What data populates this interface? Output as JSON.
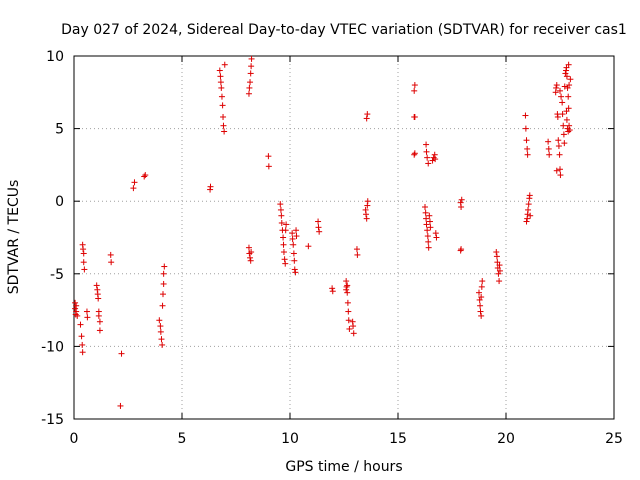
{
  "chart_data": {
    "type": "scatter",
    "title": "Day 027 of 2024, Sidereal Day-to-day VTEC variation (SDTVAR) for receiver cas1",
    "xlabel": "GPS time / hours",
    "ylabel": "SDTVAR / TECUs",
    "xlim": [
      0,
      25
    ],
    "ylim": [
      -15,
      10
    ],
    "xticks": [
      0,
      5,
      10,
      15,
      20,
      25
    ],
    "yticks": [
      -15,
      -10,
      -5,
      0,
      5,
      10
    ],
    "xtick_labels": [
      "0",
      "5",
      "10",
      "15",
      "20",
      "25"
    ],
    "ytick_labels": [
      "-15",
      "-10",
      "-5",
      "0",
      "5",
      "10"
    ],
    "grid": true,
    "marker": "+",
    "color": "#dd0000",
    "series": [
      {
        "name": "SDTVAR",
        "points": [
          [
            0.05,
            -7.0
          ],
          [
            0.05,
            -7.4
          ],
          [
            0.08,
            -7.8
          ],
          [
            0.1,
            -7.6
          ],
          [
            0.1,
            -7.2
          ],
          [
            0.15,
            -7.9
          ],
          [
            0.3,
            -8.5
          ],
          [
            0.35,
            -9.3
          ],
          [
            0.38,
            -9.9
          ],
          [
            0.4,
            -10.4
          ],
          [
            0.4,
            -3.0
          ],
          [
            0.42,
            -3.3
          ],
          [
            0.45,
            -3.6
          ],
          [
            0.45,
            -4.2
          ],
          [
            0.48,
            -4.7
          ],
          [
            0.6,
            -7.6
          ],
          [
            0.62,
            -8.0
          ],
          [
            1.05,
            -5.8
          ],
          [
            1.08,
            -6.1
          ],
          [
            1.1,
            -6.4
          ],
          [
            1.12,
            -6.7
          ],
          [
            1.15,
            -7.6
          ],
          [
            1.15,
            -7.9
          ],
          [
            1.2,
            -8.3
          ],
          [
            1.2,
            -8.9
          ],
          [
            1.7,
            -3.7
          ],
          [
            1.72,
            -4.2
          ],
          [
            2.2,
            -10.5
          ],
          [
            2.15,
            -14.1
          ],
          [
            2.75,
            0.9
          ],
          [
            2.8,
            1.3
          ],
          [
            3.25,
            1.7
          ],
          [
            3.3,
            1.8
          ],
          [
            3.95,
            -8.2
          ],
          [
            4.0,
            -8.6
          ],
          [
            4.02,
            -9.0
          ],
          [
            4.05,
            -9.5
          ],
          [
            4.08,
            -9.9
          ],
          [
            4.1,
            -7.2
          ],
          [
            4.12,
            -6.4
          ],
          [
            4.15,
            -5.7
          ],
          [
            4.15,
            -5.0
          ],
          [
            4.18,
            -4.5
          ],
          [
            6.3,
            0.8
          ],
          [
            6.32,
            1.0
          ],
          [
            6.75,
            9.0
          ],
          [
            6.78,
            8.6
          ],
          [
            6.8,
            8.2
          ],
          [
            6.82,
            7.8
          ],
          [
            6.85,
            7.2
          ],
          [
            6.88,
            6.6
          ],
          [
            6.9,
            5.8
          ],
          [
            6.92,
            5.2
          ],
          [
            6.95,
            4.8
          ],
          [
            6.98,
            9.4
          ],
          [
            8.1,
            7.4
          ],
          [
            8.12,
            7.8
          ],
          [
            8.15,
            8.2
          ],
          [
            8.18,
            8.8
          ],
          [
            8.2,
            9.3
          ],
          [
            8.22,
            9.8
          ],
          [
            8.1,
            -3.2
          ],
          [
            8.12,
            -3.6
          ],
          [
            8.15,
            -3.9
          ],
          [
            8.18,
            -4.1
          ],
          [
            8.2,
            -3.5
          ],
          [
            9.0,
            3.1
          ],
          [
            9.02,
            2.4
          ],
          [
            9.55,
            -0.2
          ],
          [
            9.58,
            -0.6
          ],
          [
            9.6,
            -1.0
          ],
          [
            9.62,
            -1.5
          ],
          [
            9.65,
            -2.0
          ],
          [
            9.68,
            -2.5
          ],
          [
            9.7,
            -3.0
          ],
          [
            9.72,
            -3.5
          ],
          [
            9.75,
            -4.0
          ],
          [
            9.78,
            -4.3
          ],
          [
            9.8,
            -2.0
          ],
          [
            9.82,
            -1.6
          ],
          [
            10.1,
            -2.2
          ],
          [
            10.12,
            -2.6
          ],
          [
            10.15,
            -3.0
          ],
          [
            10.18,
            -3.6
          ],
          [
            10.2,
            -4.1
          ],
          [
            10.22,
            -4.7
          ],
          [
            10.25,
            -4.9
          ],
          [
            10.28,
            -2.0
          ],
          [
            10.3,
            -2.4
          ],
          [
            10.85,
            -3.1
          ],
          [
            11.3,
            -1.4
          ],
          [
            11.32,
            -1.8
          ],
          [
            11.35,
            -2.1
          ],
          [
            11.95,
            -6.0
          ],
          [
            11.98,
            -6.2
          ],
          [
            12.6,
            -5.5
          ],
          [
            12.62,
            -5.9
          ],
          [
            12.65,
            -6.3
          ],
          [
            12.68,
            -7.0
          ],
          [
            12.7,
            -7.6
          ],
          [
            12.72,
            -8.2
          ],
          [
            12.75,
            -8.8
          ],
          [
            12.6,
            -6.1
          ],
          [
            12.65,
            -5.8
          ],
          [
            12.9,
            -8.3
          ],
          [
            12.92,
            -8.6
          ],
          [
            12.95,
            -9.1
          ],
          [
            13.1,
            -3.3
          ],
          [
            13.12,
            -3.7
          ],
          [
            13.5,
            -0.6
          ],
          [
            13.52,
            -0.9
          ],
          [
            13.55,
            -1.2
          ],
          [
            13.58,
            -0.3
          ],
          [
            13.6,
            0.0
          ],
          [
            13.55,
            5.7
          ],
          [
            13.58,
            6.0
          ],
          [
            15.75,
            7.6
          ],
          [
            15.78,
            8.0
          ],
          [
            15.75,
            5.8
          ],
          [
            15.78,
            5.8
          ],
          [
            15.75,
            3.2
          ],
          [
            15.78,
            3.3
          ],
          [
            16.25,
            -0.4
          ],
          [
            16.28,
            -0.8
          ],
          [
            16.3,
            -1.2
          ],
          [
            16.32,
            -1.6
          ],
          [
            16.35,
            -2.0
          ],
          [
            16.38,
            -2.4
          ],
          [
            16.4,
            -2.8
          ],
          [
            16.42,
            -3.2
          ],
          [
            16.3,
            3.9
          ],
          [
            16.32,
            3.4
          ],
          [
            16.35,
            3.0
          ],
          [
            16.4,
            2.6
          ],
          [
            16.45,
            -1.0
          ],
          [
            16.48,
            -1.4
          ],
          [
            16.5,
            -1.8
          ],
          [
            16.6,
            2.8
          ],
          [
            16.65,
            3.0
          ],
          [
            16.7,
            3.2
          ],
          [
            16.72,
            2.9
          ],
          [
            16.75,
            -2.2
          ],
          [
            16.78,
            -2.5
          ],
          [
            17.9,
            -0.1
          ],
          [
            17.92,
            -0.4
          ],
          [
            17.95,
            0.1
          ],
          [
            17.9,
            -3.4
          ],
          [
            17.92,
            -3.3
          ],
          [
            18.75,
            -6.3
          ],
          [
            18.78,
            -6.8
          ],
          [
            18.8,
            -7.2
          ],
          [
            18.82,
            -7.6
          ],
          [
            18.85,
            -7.9
          ],
          [
            18.88,
            -5.9
          ],
          [
            18.9,
            -5.5
          ],
          [
            18.85,
            -6.6
          ],
          [
            19.55,
            -3.5
          ],
          [
            19.58,
            -3.8
          ],
          [
            19.6,
            -4.2
          ],
          [
            19.62,
            -4.6
          ],
          [
            19.65,
            -5.0
          ],
          [
            19.68,
            -5.5
          ],
          [
            19.7,
            -4.4
          ],
          [
            19.72,
            -4.8
          ],
          [
            20.9,
            5.9
          ],
          [
            20.92,
            5.0
          ],
          [
            20.95,
            4.2
          ],
          [
            20.98,
            3.6
          ],
          [
            21.0,
            3.2
          ],
          [
            20.95,
            -1.4
          ],
          [
            20.98,
            -1.2
          ],
          [
            21.0,
            -0.9
          ],
          [
            21.02,
            -0.6
          ],
          [
            21.05,
            -0.2
          ],
          [
            21.08,
            0.2
          ],
          [
            21.1,
            0.4
          ],
          [
            21.12,
            -1.0
          ],
          [
            21.95,
            4.1
          ],
          [
            21.98,
            3.6
          ],
          [
            22.0,
            3.2
          ],
          [
            22.3,
            7.5
          ],
          [
            22.32,
            7.8
          ],
          [
            22.35,
            8.0
          ],
          [
            22.38,
            6.0
          ],
          [
            22.4,
            5.8
          ],
          [
            22.42,
            4.2
          ],
          [
            22.45,
            3.8
          ],
          [
            22.48,
            3.2
          ],
          [
            22.5,
            2.2
          ],
          [
            22.52,
            1.8
          ],
          [
            22.35,
            2.1
          ],
          [
            22.5,
            7.6
          ],
          [
            22.55,
            7.2
          ],
          [
            22.6,
            6.8
          ],
          [
            22.62,
            6.0
          ],
          [
            22.65,
            5.2
          ],
          [
            22.68,
            4.6
          ],
          [
            22.7,
            4.0
          ],
          [
            22.72,
            7.9
          ],
          [
            22.75,
            8.8
          ],
          [
            22.78,
            9.0
          ],
          [
            22.8,
            9.2
          ],
          [
            22.82,
            8.6
          ],
          [
            22.85,
            7.8
          ],
          [
            22.88,
            7.2
          ],
          [
            22.9,
            6.4
          ],
          [
            22.92,
            5.2
          ],
          [
            22.95,
            4.9
          ],
          [
            22.98,
            8.4
          ],
          [
            22.8,
            6.2
          ],
          [
            22.82,
            5.6
          ],
          [
            22.85,
            5.0
          ],
          [
            22.88,
            4.8
          ],
          [
            22.9,
            9.4
          ],
          [
            22.92,
            8.0
          ]
        ]
      }
    ]
  }
}
